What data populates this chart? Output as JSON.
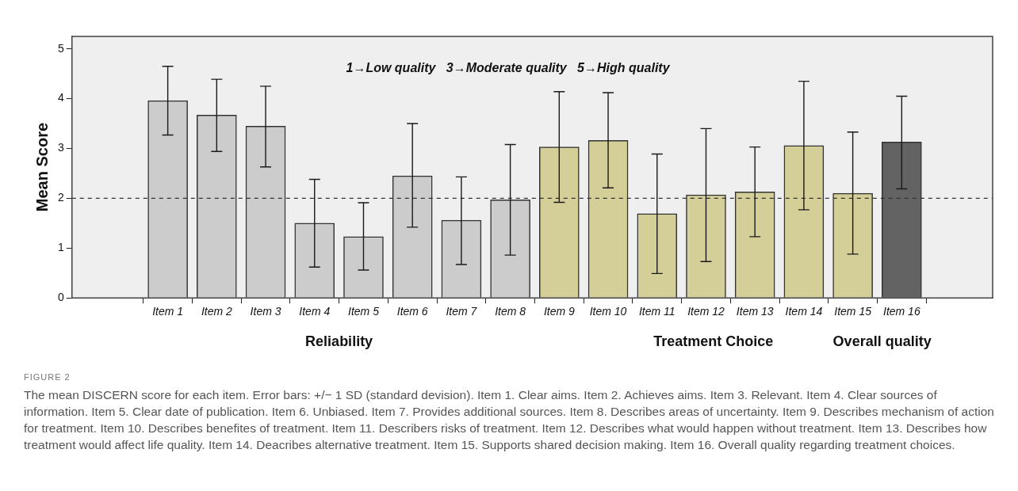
{
  "chart_data": {
    "type": "bar",
    "ylabel": "Mean Score",
    "categories": [
      "Item 1",
      "Item 2",
      "Item 3",
      "Item 4",
      "Item 5",
      "Item 6",
      "Item 7",
      "Item 8",
      "Item 9",
      "Item 10",
      "Item 11",
      "Item 12",
      "Item 13",
      "Item 14",
      "Item 15",
      "Item 16"
    ],
    "values": [
      3.96,
      3.67,
      3.45,
      1.5,
      1.23,
      2.45,
      1.56,
      1.97,
      3.03,
      3.16,
      1.69,
      2.07,
      2.13,
      3.06,
      2.1,
      3.13
    ],
    "errors": [
      [
        3.27,
        4.65
      ],
      [
        2.94,
        4.39
      ],
      [
        2.63,
        4.25
      ],
      [
        0.62,
        2.38
      ],
      [
        0.56,
        1.91
      ],
      [
        1.42,
        3.5
      ],
      [
        0.67,
        2.43
      ],
      [
        0.86,
        3.08
      ],
      [
        1.92,
        4.14
      ],
      [
        2.21,
        4.12
      ],
      [
        0.49,
        2.89
      ],
      [
        0.73,
        3.4
      ],
      [
        1.23,
        3.03
      ],
      [
        1.77,
        4.35
      ],
      [
        0.88,
        3.33
      ],
      [
        2.19,
        4.05
      ]
    ],
    "colors": [
      "#cccccc",
      "#cccccc",
      "#cccccc",
      "#cccccc",
      "#cccccc",
      "#cccccc",
      "#cccccc",
      "#cccccc",
      "#d4cf98",
      "#d4cf98",
      "#d4cf98",
      "#d4cf98",
      "#d4cf98",
      "#d4cf98",
      "#d4cf98",
      "#636363"
    ],
    "ylim": [
      0,
      5.25
    ],
    "yticks": [
      0,
      1,
      2,
      3,
      4,
      5
    ],
    "grid": false,
    "legend": false,
    "ref_lines": [
      {
        "axis": "y",
        "value": 2,
        "line_style": "dashed",
        "color": "#333333"
      }
    ],
    "annotations": [
      "1→Low quality   3→Moderate quality   5→High quality",
      "Reliability",
      "Treatment Choice",
      "Overall quality",
      "FIGURE 2",
      "The mean DISCERN score for each item. Error bars: +/− 1 SD (standard devision). Item 1. Clear aims. Item 2. Achieves aims. Item 3. Relevant. Item 4. Clear sources of information. Item 5. Clear date of publication. Item 6. Unbiased. Item 7. Provides additional sources. Item 8. Describes areas of uncertainty. Item 9. Describes mechanism of action for treatment. Item 10. Describes benefites of treatment. Item 11. Describers risks of treatment. Item 12. Describes what would happen without treatment. Item 13. Describes how treatment would affect life quality. Item 14. Deacribes alternative treatment. Item 15. Supports shared decision making. Item 16. Overall quality regarding treatment choices."
    ]
  }
}
